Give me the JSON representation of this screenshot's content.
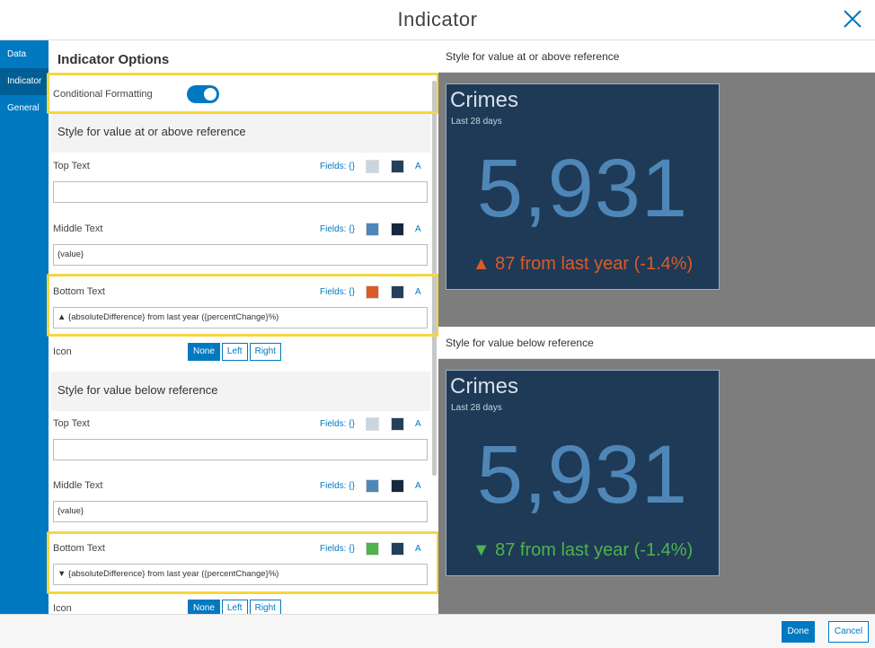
{
  "dialog": {
    "title": "Indicator"
  },
  "nav": {
    "items": [
      {
        "label": "Data"
      },
      {
        "label": "Indicator"
      },
      {
        "label": "General"
      }
    ]
  },
  "options": {
    "header": "Indicator Options",
    "conditional_formatting": {
      "label": "Conditional Formatting",
      "enabled": true
    },
    "above": {
      "title": "Style for value at or above reference",
      "top_text": {
        "label": "Top Text",
        "fields": "Fields: {}",
        "a": "A",
        "colors": [
          "#c8d6e3",
          "#233f5c"
        ],
        "value": ""
      },
      "middle_text": {
        "label": "Middle Text",
        "fields": "Fields: {}",
        "a": "A",
        "colors": [
          "#4f86b8",
          "#15283d"
        ],
        "value": "{value}"
      },
      "bottom_text": {
        "label": "Bottom Text",
        "fields": "Fields: {}",
        "a": "A",
        "colors": [
          "#dc5a29",
          "#233f5c"
        ],
        "value": "▲ {absoluteDifference} from last year ({percentChange}%)"
      },
      "icon": {
        "label": "Icon",
        "options": [
          "None",
          "Left",
          "Right"
        ],
        "selected": "None"
      }
    },
    "below": {
      "title": "Style for value below reference",
      "top_text": {
        "label": "Top Text",
        "fields": "Fields: {}",
        "a": "A",
        "colors": [
          "#c8d6e3",
          "#233f5c"
        ],
        "value": ""
      },
      "middle_text": {
        "label": "Middle Text",
        "fields": "Fields: {}",
        "a": "A",
        "colors": [
          "#4f86b8",
          "#15283d"
        ],
        "value": "{value}"
      },
      "bottom_text": {
        "label": "Bottom Text",
        "fields": "Fields: {}",
        "a": "A",
        "colors": [
          "#4fb24f",
          "#233f5c"
        ],
        "value": "▼ {absoluteDifference} from last year ({percentChange}%)"
      },
      "icon": {
        "label": "Icon",
        "options": [
          "None",
          "Left",
          "Right"
        ],
        "selected": "None"
      }
    }
  },
  "preview": {
    "above": {
      "label": "Style for value at or above reference",
      "title": "Crimes",
      "subtitle": "Last 28 days",
      "value": "5,931",
      "bottom": "▲ 87 from last year (-1.4%)",
      "bottom_color": "#dc5a29"
    },
    "below": {
      "label": "Style for value below reference",
      "title": "Crimes",
      "subtitle": "Last 28 days",
      "value": "5,931",
      "bottom": "▼ 87 from last year (-1.4%)",
      "bottom_color": "#4fb24f"
    }
  },
  "footer": {
    "done": "Done",
    "cancel": "Cancel"
  },
  "colors": {
    "accent": "#0079c1",
    "highlight": "#f3d73f",
    "card_bg": "#1f3a56"
  }
}
